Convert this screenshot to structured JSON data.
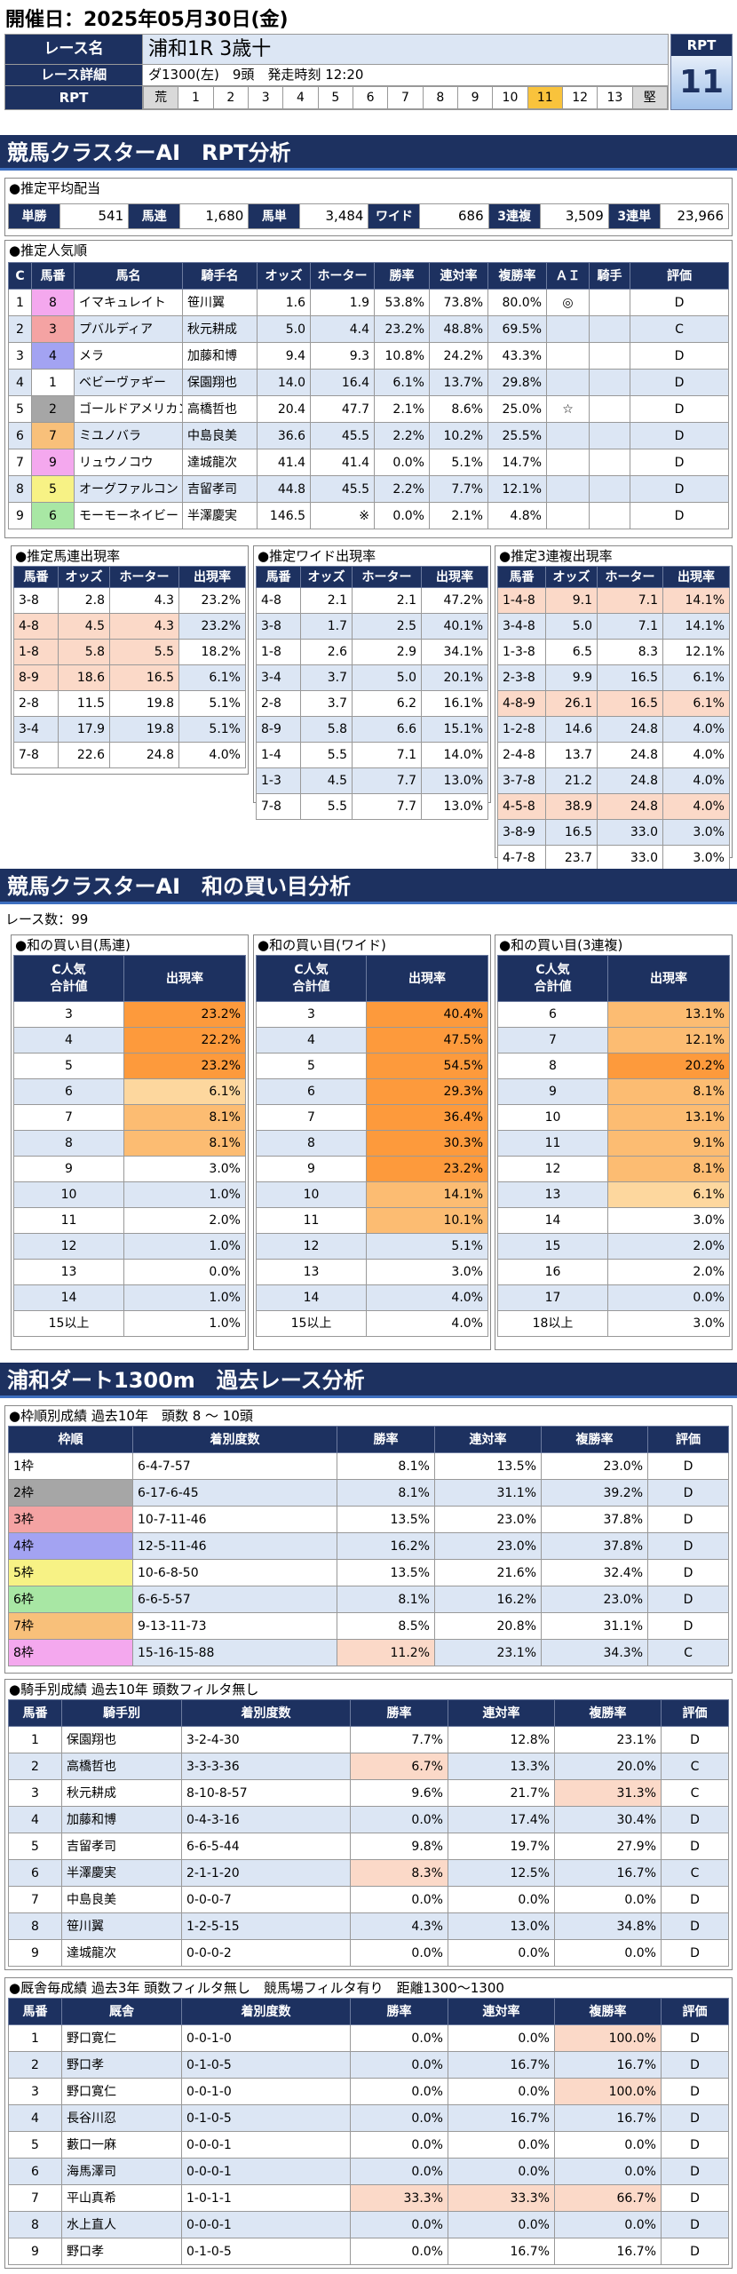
{
  "date_label": "開催日：2025年05月30日(金)",
  "race": {
    "name_label": "レース名",
    "name": "浦和1R 3歳十",
    "detail_label": "レース詳細",
    "detail": "ダ1300(左)　9頭　発走時刻 12:20",
    "rpt_label": "RPT",
    "rpt_head": "RPT",
    "rpt_value": "11",
    "scale": [
      "荒",
      "1",
      "2",
      "3",
      "4",
      "5",
      "6",
      "7",
      "8",
      "9",
      "10",
      "11",
      "12",
      "13",
      "堅"
    ]
  },
  "sec1_title": "競馬クラスターAI　RPT分析",
  "payout": {
    "caption": "●推定平均配当",
    "items": [
      [
        "単勝",
        "541"
      ],
      [
        "馬連",
        "1,680"
      ],
      [
        "馬単",
        "3,484"
      ],
      [
        "ワイド",
        "686"
      ],
      [
        "3連複",
        "3,509"
      ],
      [
        "3連単",
        "23,966"
      ]
    ]
  },
  "pop": {
    "caption": "●推定人気順",
    "headers": [
      "C",
      "馬番",
      "馬名",
      "騎手名",
      "オッズ",
      "ホーター",
      "勝率",
      "連対率",
      "複勝率",
      "ＡＩ",
      "騎手",
      "評価"
    ],
    "rows": [
      [
        "1",
        "8",
        "イマキュレイト",
        "笹川翼",
        "1.6",
        "1.9",
        "53.8%",
        "73.8%",
        "80.0%",
        "◎",
        "",
        "D"
      ],
      [
        "2",
        "3",
        "プバルディア",
        "秋元耕成",
        "5.0",
        "4.4",
        "23.2%",
        "48.8%",
        "69.5%",
        "",
        "",
        "C"
      ],
      [
        "3",
        "4",
        "メラ",
        "加藤和博",
        "9.4",
        "9.3",
        "10.8%",
        "24.2%",
        "43.3%",
        "",
        "",
        "D"
      ],
      [
        "4",
        "1",
        "ベビーヴァギー",
        "保園翔也",
        "14.0",
        "16.4",
        "6.1%",
        "13.7%",
        "29.8%",
        "",
        "",
        "D"
      ],
      [
        "5",
        "2",
        "ゴールドアメリカン",
        "高橋哲也",
        "20.4",
        "47.7",
        "2.1%",
        "8.6%",
        "25.0%",
        "☆",
        "",
        "D"
      ],
      [
        "6",
        "7",
        "ミユノバラ",
        "中島良美",
        "36.6",
        "45.5",
        "2.2%",
        "10.2%",
        "25.5%",
        "",
        "",
        "D"
      ],
      [
        "7",
        "9",
        "リュウノコウ",
        "達城龍次",
        "41.4",
        "41.4",
        "0.0%",
        "5.1%",
        "14.7%",
        "",
        "",
        "D"
      ],
      [
        "8",
        "5",
        "オーグファルコン",
        "吉留孝司",
        "44.8",
        "45.5",
        "2.2%",
        "7.7%",
        "12.1%",
        "",
        "",
        "D"
      ],
      [
        "9",
        "6",
        "モーモーネイビー",
        "半澤慶実",
        "146.5",
        "※",
        "0.0%",
        "2.1%",
        "4.8%",
        "",
        "",
        "D"
      ]
    ]
  },
  "umaren": {
    "caption": "●推定馬連出現率",
    "headers": [
      "馬番",
      "オッズ",
      "ホーター",
      "出現率"
    ],
    "rows": [
      [
        "3-8",
        "2.8",
        "4.3",
        "23.2%"
      ],
      [
        "4-8",
        "4.5",
        "4.3",
        "23.2%"
      ],
      [
        "1-8",
        "5.8",
        "5.5",
        "18.2%"
      ],
      [
        "8-9",
        "18.6",
        "16.5",
        "6.1%"
      ],
      [
        "2-8",
        "11.5",
        "19.8",
        "5.1%"
      ],
      [
        "3-4",
        "17.9",
        "19.8",
        "5.1%"
      ],
      [
        "7-8",
        "22.6",
        "24.8",
        "4.0%"
      ]
    ]
  },
  "wide": {
    "caption": "●推定ワイド出現率",
    "headers": [
      "馬番",
      "オッズ",
      "ホーター",
      "出現率"
    ],
    "rows": [
      [
        "4-8",
        "2.1",
        "2.1",
        "47.2%"
      ],
      [
        "3-8",
        "1.7",
        "2.5",
        "40.1%"
      ],
      [
        "1-8",
        "2.6",
        "2.9",
        "34.1%"
      ],
      [
        "3-4",
        "3.7",
        "5.0",
        "20.1%"
      ],
      [
        "2-8",
        "3.7",
        "6.2",
        "16.1%"
      ],
      [
        "8-9",
        "5.8",
        "6.6",
        "15.1%"
      ],
      [
        "1-4",
        "5.5",
        "7.1",
        "14.0%"
      ],
      [
        "1-3",
        "4.5",
        "7.7",
        "13.0%"
      ],
      [
        "7-8",
        "5.5",
        "7.7",
        "13.0%"
      ]
    ]
  },
  "sanren": {
    "caption": "●推定3連複出現率",
    "headers": [
      "馬番",
      "オッズ",
      "ホーター",
      "出現率"
    ],
    "rows": [
      [
        "1-4-8",
        "9.1",
        "7.1",
        "14.1%"
      ],
      [
        "3-4-8",
        "5.0",
        "7.1",
        "14.1%"
      ],
      [
        "1-3-8",
        "6.5",
        "8.3",
        "12.1%"
      ],
      [
        "2-3-8",
        "9.9",
        "16.5",
        "6.1%"
      ],
      [
        "4-8-9",
        "26.1",
        "16.5",
        "6.1%"
      ],
      [
        "1-2-8",
        "14.6",
        "24.8",
        "4.0%"
      ],
      [
        "2-4-8",
        "13.7",
        "24.8",
        "4.0%"
      ],
      [
        "3-7-8",
        "21.2",
        "24.8",
        "4.0%"
      ],
      [
        "4-5-8",
        "38.9",
        "24.8",
        "4.0%"
      ],
      [
        "3-8-9",
        "16.5",
        "33.0",
        "3.0%"
      ],
      [
        "4-7-8",
        "23.7",
        "33.0",
        "3.0%"
      ]
    ]
  },
  "sec2_title": "競馬クラスターAI　和の買い目分析",
  "race_count": "レース数：99",
  "wa": [
    {
      "caption": "●和の買い目(馬連)",
      "h1": "C人気",
      "h2": "合計値",
      "h3": "出現率",
      "rows": [
        [
          "3",
          "23.2%"
        ],
        [
          "4",
          "22.2%"
        ],
        [
          "5",
          "23.2%"
        ],
        [
          "6",
          "6.1%"
        ],
        [
          "7",
          "8.1%"
        ],
        [
          "8",
          "8.1%"
        ],
        [
          "9",
          "3.0%"
        ],
        [
          "10",
          "1.0%"
        ],
        [
          "11",
          "2.0%"
        ],
        [
          "12",
          "1.0%"
        ],
        [
          "13",
          "0.0%"
        ],
        [
          "14",
          "1.0%"
        ],
        [
          "15以上",
          "1.0%"
        ]
      ]
    },
    {
      "caption": "●和の買い目(ワイド)",
      "h1": "C人気",
      "h2": "合計値",
      "h3": "出現率",
      "rows": [
        [
          "3",
          "40.4%"
        ],
        [
          "4",
          "47.5%"
        ],
        [
          "5",
          "54.5%"
        ],
        [
          "6",
          "29.3%"
        ],
        [
          "7",
          "36.4%"
        ],
        [
          "8",
          "30.3%"
        ],
        [
          "9",
          "23.2%"
        ],
        [
          "10",
          "14.1%"
        ],
        [
          "11",
          "10.1%"
        ],
        [
          "12",
          "5.1%"
        ],
        [
          "13",
          "3.0%"
        ],
        [
          "14",
          "4.0%"
        ],
        [
          "15以上",
          "4.0%"
        ]
      ]
    },
    {
      "caption": "●和の買い目(3連複)",
      "h1": "C人気",
      "h2": "合計値",
      "h3": "出現率",
      "rows": [
        [
          "6",
          "13.1%"
        ],
        [
          "7",
          "12.1%"
        ],
        [
          "8",
          "20.2%"
        ],
        [
          "9",
          "8.1%"
        ],
        [
          "10",
          "13.1%"
        ],
        [
          "11",
          "9.1%"
        ],
        [
          "12",
          "8.1%"
        ],
        [
          "13",
          "6.1%"
        ],
        [
          "14",
          "3.0%"
        ],
        [
          "15",
          "2.0%"
        ],
        [
          "16",
          "2.0%"
        ],
        [
          "17",
          "0.0%"
        ],
        [
          "18以上",
          "3.0%"
        ]
      ]
    }
  ],
  "sec3_title": "浦和ダート1300m　過去レース分析",
  "waku": {
    "caption": "●枠順別成績 過去10年　頭数 8 ～ 10頭",
    "headers": [
      "枠順",
      "着別度数",
      "勝率",
      "連対率",
      "複勝率",
      "評価"
    ],
    "rows": [
      [
        "1枠",
        "6-4-7-57",
        "8.1%",
        "13.5%",
        "23.0%",
        "D"
      ],
      [
        "2枠",
        "6-17-6-45",
        "8.1%",
        "31.1%",
        "39.2%",
        "D"
      ],
      [
        "3枠",
        "10-7-11-46",
        "13.5%",
        "23.0%",
        "37.8%",
        "D"
      ],
      [
        "4枠",
        "12-5-11-46",
        "16.2%",
        "23.0%",
        "37.8%",
        "D"
      ],
      [
        "5枠",
        "10-6-8-50",
        "13.5%",
        "21.6%",
        "32.4%",
        "D"
      ],
      [
        "6枠",
        "6-6-5-57",
        "8.1%",
        "16.2%",
        "23.0%",
        "D"
      ],
      [
        "7枠",
        "9-13-11-73",
        "8.5%",
        "20.8%",
        "31.1%",
        "D"
      ],
      [
        "8枠",
        "15-16-15-88",
        "11.2%",
        "23.1%",
        "34.3%",
        "C"
      ]
    ]
  },
  "jockey": {
    "caption": "●騎手別成績 過去10年 頭数フィルタ無し",
    "headers": [
      "馬番",
      "騎手別",
      "着別度数",
      "勝率",
      "連対率",
      "複勝率",
      "評価"
    ],
    "rows": [
      [
        "1",
        "保園翔也",
        "3-2-4-30",
        "7.7%",
        "12.8%",
        "23.1%",
        "D"
      ],
      [
        "2",
        "高橋哲也",
        "3-3-3-36",
        "6.7%",
        "13.3%",
        "20.0%",
        "C"
      ],
      [
        "3",
        "秋元耕成",
        "8-10-8-57",
        "9.6%",
        "21.7%",
        "31.3%",
        "C"
      ],
      [
        "4",
        "加藤和博",
        "0-4-3-16",
        "0.0%",
        "17.4%",
        "30.4%",
        "D"
      ],
      [
        "5",
        "吉留孝司",
        "6-6-5-44",
        "9.8%",
        "19.7%",
        "27.9%",
        "D"
      ],
      [
        "6",
        "半澤慶実",
        "2-1-1-20",
        "8.3%",
        "12.5%",
        "16.7%",
        "C"
      ],
      [
        "7",
        "中島良美",
        "0-0-0-7",
        "0.0%",
        "0.0%",
        "0.0%",
        "D"
      ],
      [
        "8",
        "笹川翼",
        "1-2-5-15",
        "4.3%",
        "13.0%",
        "34.8%",
        "D"
      ],
      [
        "9",
        "達城龍次",
        "0-0-0-2",
        "0.0%",
        "0.0%",
        "0.0%",
        "D"
      ]
    ]
  },
  "trainer": {
    "caption": "●厩舎毎成績 過去3年 頭数フィルタ無し　競馬場フィルタ有り　距離1300～1300",
    "headers": [
      "馬番",
      "厩舎",
      "着別度数",
      "勝率",
      "連対率",
      "複勝率",
      "評価"
    ],
    "rows": [
      [
        "1",
        "野口寛仁",
        "0-0-1-0",
        "0.0%",
        "0.0%",
        "100.0%",
        "D"
      ],
      [
        "2",
        "野口孝",
        "0-1-0-5",
        "0.0%",
        "16.7%",
        "16.7%",
        "D"
      ],
      [
        "3",
        "野口寛仁",
        "0-0-1-0",
        "0.0%",
        "0.0%",
        "100.0%",
        "D"
      ],
      [
        "4",
        "長谷川忍",
        "0-1-0-5",
        "0.0%",
        "16.7%",
        "16.7%",
        "D"
      ],
      [
        "5",
        "藪口一麻",
        "0-0-0-1",
        "0.0%",
        "0.0%",
        "0.0%",
        "D"
      ],
      [
        "6",
        "海馬澤司",
        "0-0-0-1",
        "0.0%",
        "0.0%",
        "0.0%",
        "D"
      ],
      [
        "7",
        "平山真希",
        "1-0-1-1",
        "33.3%",
        "33.3%",
        "66.7%",
        "D"
      ],
      [
        "8",
        "水上直人",
        "0-0-0-1",
        "0.0%",
        "0.0%",
        "0.0%",
        "D"
      ],
      [
        "9",
        "野口孝",
        "0-1-0-5",
        "0.0%",
        "16.7%",
        "16.7%",
        "D"
      ]
    ]
  },
  "colors": {
    "navy": "#1d3160",
    "waku": [
      "#ffffff",
      "#a6a6a6",
      "#f4a3a3",
      "#a3a3f2",
      "#f7f285",
      "#a8e7a4",
      "#f8c07a",
      "#f4a8ee"
    ]
  }
}
